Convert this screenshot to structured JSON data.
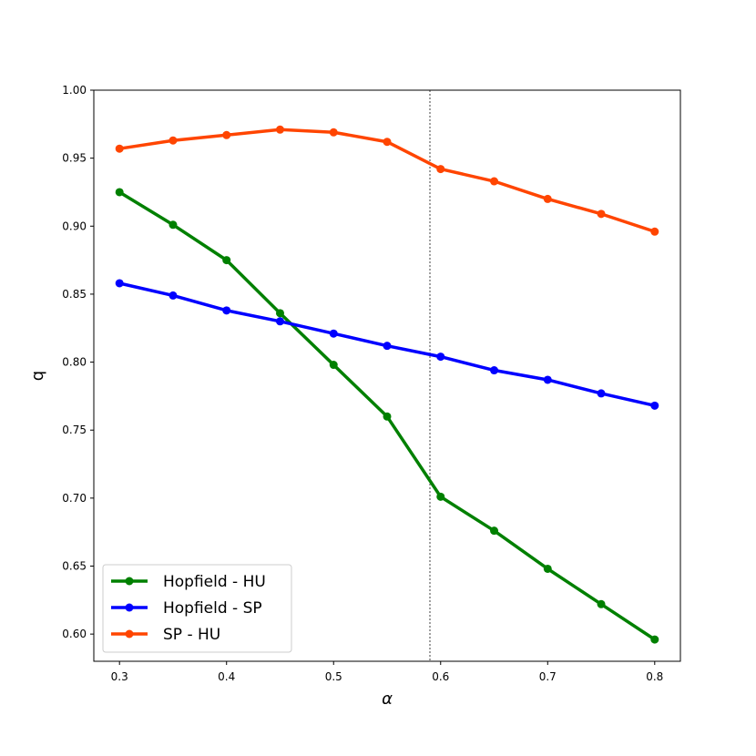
{
  "chart_data": {
    "type": "line",
    "title": "",
    "xlabel": "α",
    "ylabel": "q",
    "xlim": [
      0.276,
      0.824
    ],
    "ylim": [
      0.58,
      1.0
    ],
    "x_ticks": [
      "0.3",
      "0.4",
      "0.5",
      "0.6",
      "0.7",
      "0.8"
    ],
    "y_ticks": [
      "0.60",
      "0.65",
      "0.70",
      "0.75",
      "0.80",
      "0.85",
      "0.90",
      "0.95",
      "1.00"
    ],
    "grid": false,
    "legend_position": "bottom-left",
    "vertical_line": {
      "x": 0.59,
      "style": "dotted",
      "color": "#808080"
    },
    "x": [
      0.3,
      0.35,
      0.4,
      0.45,
      0.5,
      0.55,
      0.6,
      0.65,
      0.7,
      0.75,
      0.8
    ],
    "series": [
      {
        "name": "Hopfield - HU",
        "color": "#008000",
        "values": [
          0.925,
          0.901,
          0.875,
          0.836,
          0.798,
          0.76,
          0.701,
          0.676,
          0.648,
          0.622,
          0.596
        ]
      },
      {
        "name": "Hopfield - SP",
        "color": "#0000ff",
        "values": [
          0.858,
          0.849,
          0.838,
          0.83,
          0.821,
          0.812,
          0.804,
          0.794,
          0.787,
          0.777,
          0.768
        ]
      },
      {
        "name": "SP - HU",
        "color": "#ff4500",
        "values": [
          0.957,
          0.963,
          0.967,
          0.971,
          0.969,
          0.962,
          0.942,
          0.933,
          0.92,
          0.909,
          0.896
        ]
      }
    ]
  }
}
